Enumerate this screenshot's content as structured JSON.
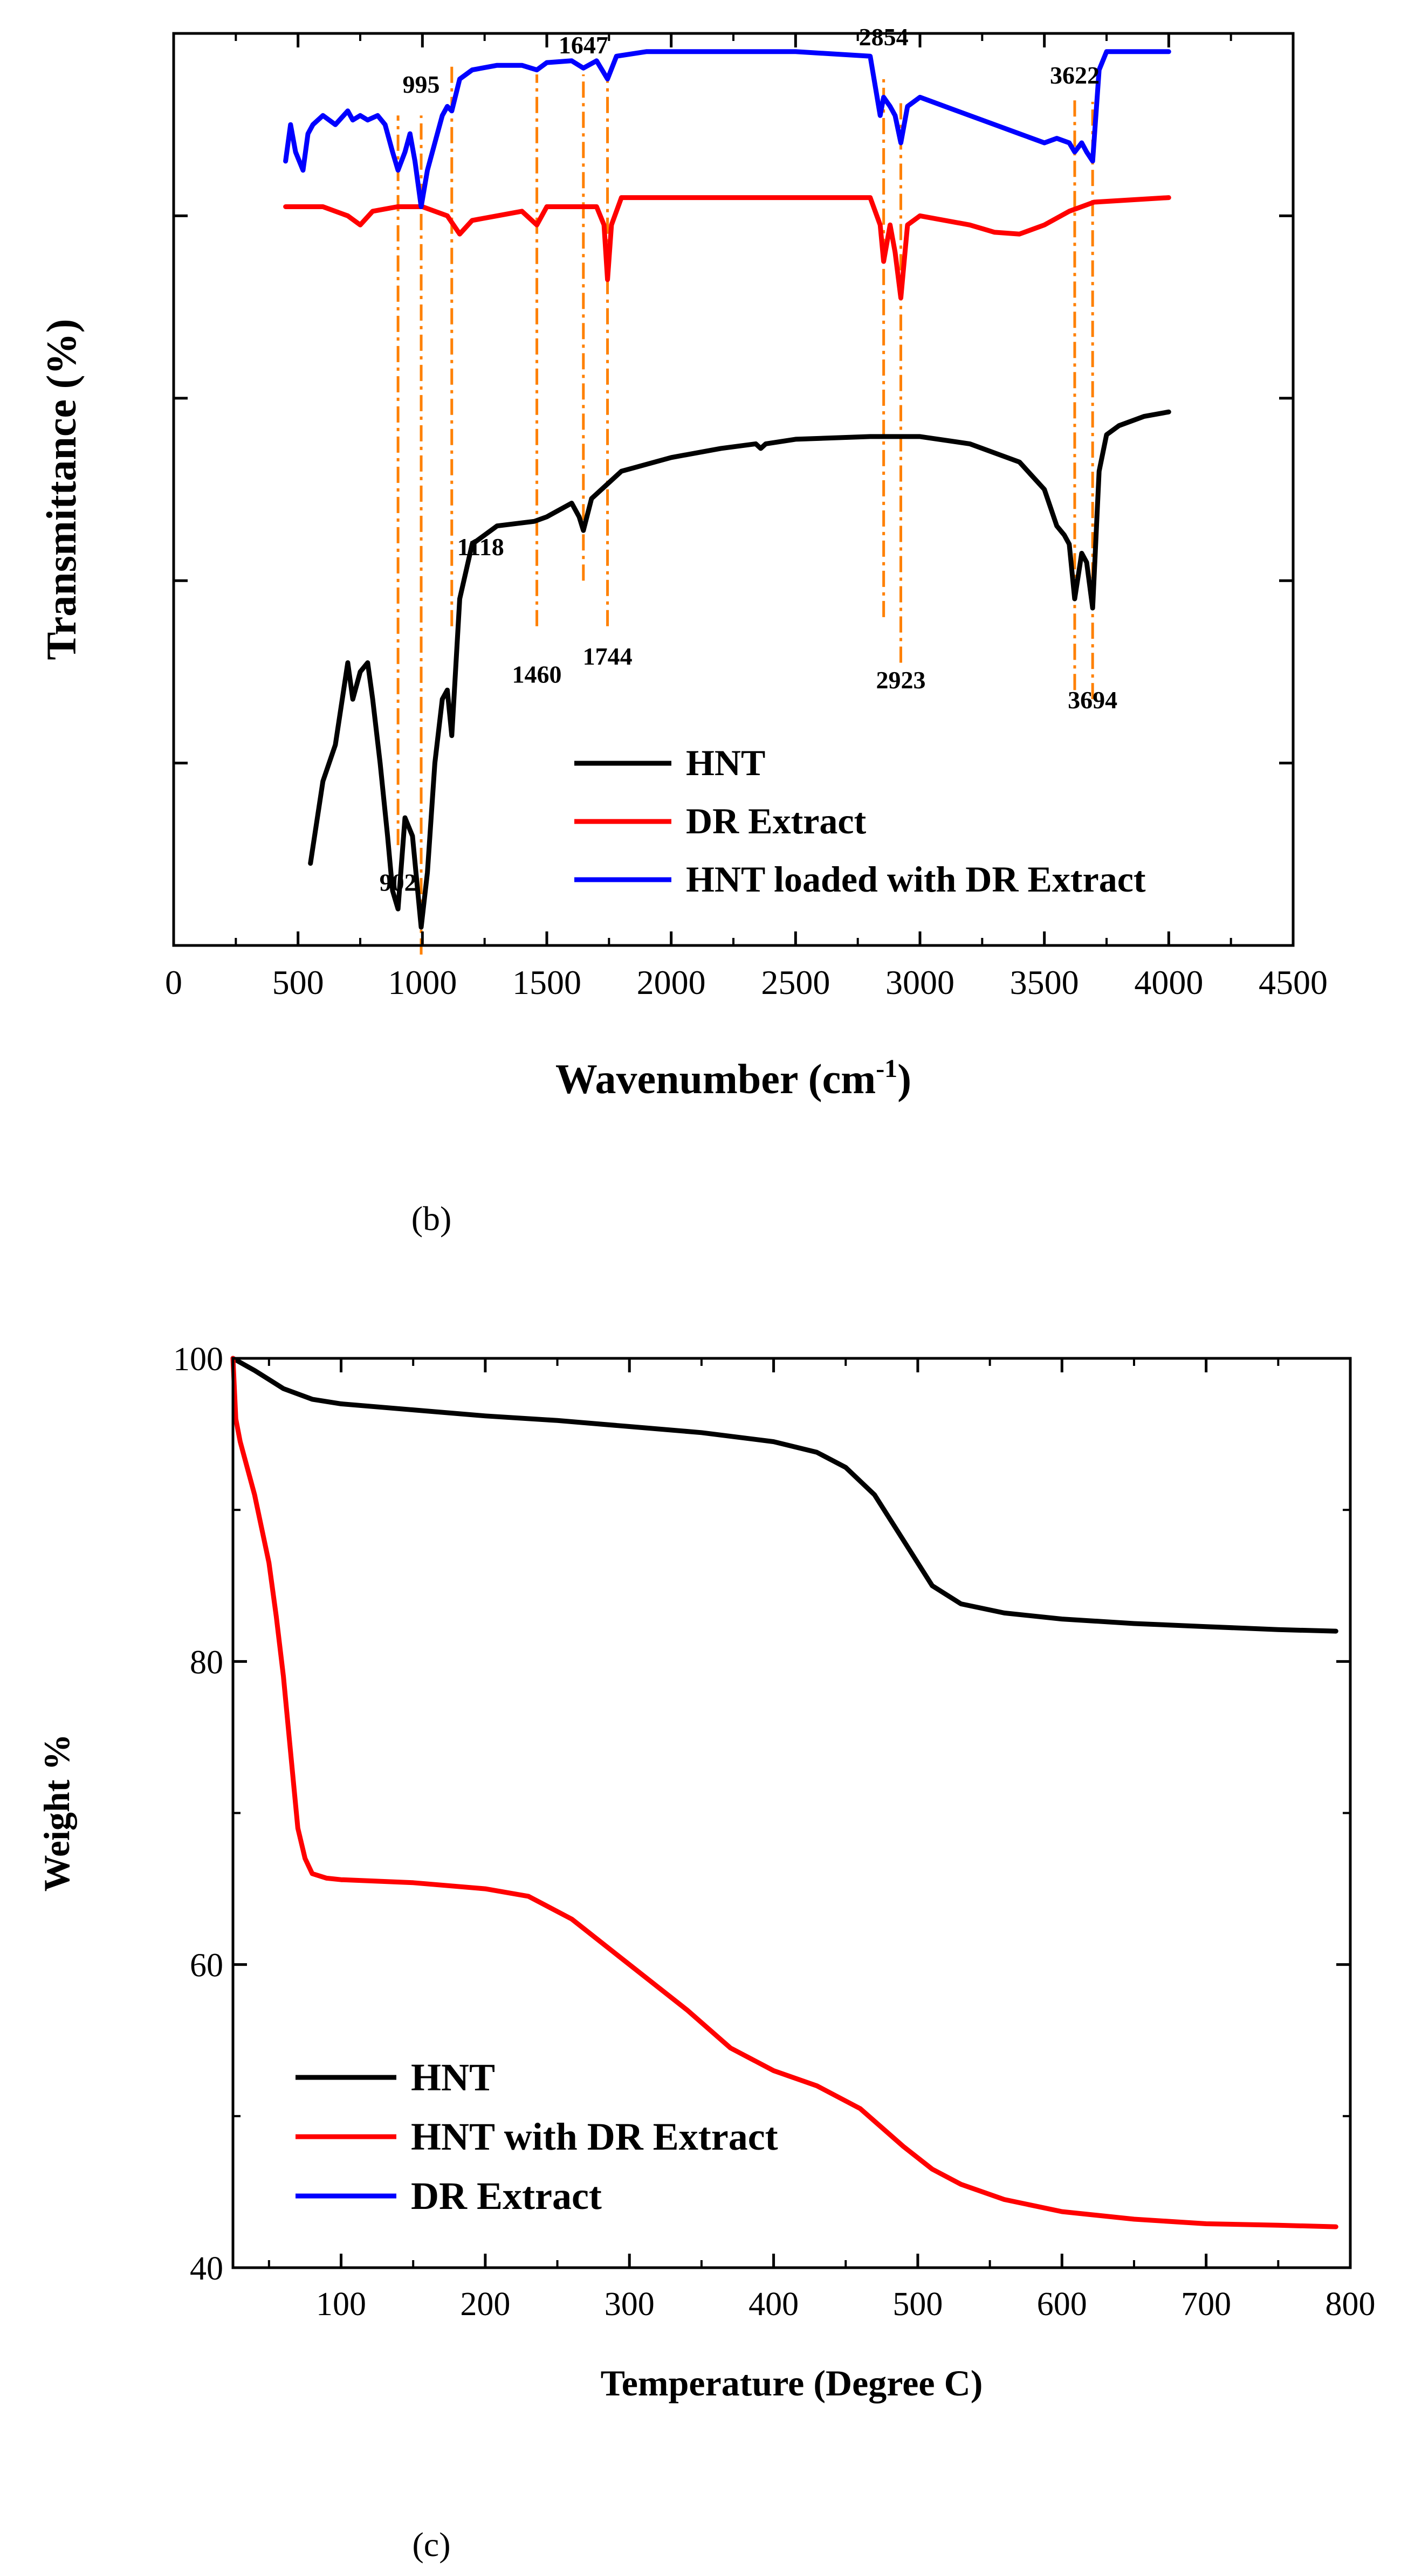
{
  "chart_data": [
    {
      "type": "line",
      "panel_label": "(b)",
      "title": "",
      "xlabel": "Wavenumber (cm",
      "xlabel_sup": "-1",
      "xlabel_close": ")",
      "ylabel": "Transmittance (%)",
      "xlim": [
        0,
        4500
      ],
      "ylim": [
        0,
        100
      ],
      "yticks_labeled": false,
      "xticks": [
        "0",
        "500",
        "1000",
        "1500",
        "2000",
        "2500",
        "3000",
        "3500",
        "4000",
        "4500"
      ],
      "legend_position": "bottom-right",
      "series": [
        {
          "name": "HNT",
          "color": "#000000",
          "x": [
            550,
            600,
            650,
            700,
            720,
            750,
            780,
            800,
            830,
            860,
            880,
            902,
            930,
            960,
            995,
            1020,
            1050,
            1080,
            1100,
            1118,
            1150,
            1200,
            1300,
            1450,
            1500,
            1600,
            1630,
            1647,
            1680,
            1800,
            2000,
            2200,
            2340,
            2360,
            2380,
            2500,
            2800,
            3000,
            3200,
            3400,
            3500,
            3550,
            3580,
            3600,
            3622,
            3650,
            3670,
            3694,
            3720,
            3750,
            3800,
            3900,
            4000
          ],
          "values": [
            9,
            18,
            22,
            31,
            27,
            30,
            31,
            27,
            20,
            12,
            6,
            4,
            14,
            12,
            2,
            8,
            20,
            27,
            28,
            23,
            38,
            44,
            46,
            46.5,
            47,
            48.5,
            47,
            45.5,
            49,
            52,
            53.5,
            54.5,
            55,
            54.5,
            55,
            55.5,
            55.8,
            55.8,
            55,
            53,
            50,
            46,
            45,
            44,
            38,
            43,
            42,
            37,
            52,
            56,
            57,
            58,
            58.5
          ]
        },
        {
          "name": "DR Extract",
          "color": "#ff0000",
          "x": [
            450,
            600,
            700,
            750,
            800,
            900,
            1000,
            1100,
            1150,
            1200,
            1300,
            1400,
            1460,
            1500,
            1600,
            1700,
            1730,
            1744,
            1760,
            1800,
            2000,
            2500,
            2800,
            2840,
            2854,
            2880,
            2900,
            2923,
            2950,
            3000,
            3200,
            3300,
            3400,
            3500,
            3600,
            3700,
            4000
          ],
          "values": [
            81,
            81,
            80,
            79,
            80.5,
            81,
            81,
            80,
            78,
            79.5,
            80,
            80.5,
            79,
            81,
            81,
            81,
            79,
            73,
            79,
            82,
            82,
            82,
            82,
            79,
            75,
            79,
            76,
            71,
            79,
            80,
            79,
            78.2,
            78,
            79,
            80.5,
            81.5,
            82
          ]
        },
        {
          "name": "HNT loaded with DR Extract",
          "color": "#0000ff",
          "x": [
            450,
            470,
            490,
            520,
            540,
            560,
            600,
            650,
            700,
            720,
            750,
            780,
            820,
            850,
            880,
            902,
            930,
            950,
            970,
            995,
            1020,
            1050,
            1080,
            1100,
            1118,
            1150,
            1200,
            1300,
            1400,
            1460,
            1500,
            1600,
            1647,
            1700,
            1744,
            1780,
            1900,
            2000,
            2500,
            2800,
            2840,
            2854,
            2880,
            2900,
            2923,
            2950,
            3000,
            3100,
            3200,
            3300,
            3400,
            3500,
            3550,
            3600,
            3622,
            3650,
            3670,
            3694,
            3720,
            3750,
            3800,
            4000
          ],
          "values": [
            86,
            90,
            87,
            85,
            89,
            90,
            91,
            90,
            91.5,
            90.5,
            91,
            90.5,
            91,
            90,
            87,
            85,
            87,
            89,
            86,
            81,
            85,
            88,
            91,
            92,
            91.5,
            95,
            96,
            96.5,
            96.5,
            96,
            96.8,
            97,
            96.2,
            97,
            95,
            97.5,
            98,
            98,
            98,
            97.5,
            91,
            93,
            92,
            91,
            88,
            92,
            93,
            92,
            91,
            90,
            89,
            88,
            88.5,
            88,
            87,
            88,
            87,
            86,
            96,
            98,
            98,
            98
          ]
        }
      ],
      "annotations": [
        "902",
        "995",
        "1118",
        "1460",
        "1647",
        "1744",
        "2854",
        "2923",
        "3622",
        "3694"
      ],
      "annotation_positions": [
        902,
        995,
        1118,
        1460,
        1647,
        1744,
        2854,
        2923,
        3622,
        3694
      ]
    },
    {
      "type": "line",
      "panel_label": "(c)",
      "title": "",
      "xlabel": "Temperature (Degree C)",
      "ylabel": "Weight %",
      "xlim": [
        25,
        800
      ],
      "ylim": [
        40,
        100
      ],
      "xticks": [
        "100",
        "200",
        "300",
        "400",
        "500",
        "600",
        "700",
        "800"
      ],
      "xtick_values": [
        100,
        200,
        300,
        400,
        500,
        600,
        700,
        800
      ],
      "yticks": [
        "40",
        "60",
        "80",
        "100"
      ],
      "ytick_values": [
        40,
        60,
        80,
        100
      ],
      "legend_position": "bottom-left",
      "series": [
        {
          "name": "HNT",
          "color": "#000000",
          "x": [
            25,
            40,
            60,
            80,
            100,
            150,
            200,
            250,
            300,
            350,
            400,
            430,
            450,
            470,
            490,
            510,
            530,
            560,
            600,
            650,
            700,
            750,
            790
          ],
          "values": [
            100,
            99.2,
            98,
            97.3,
            97,
            96.6,
            96.2,
            95.9,
            95.5,
            95.1,
            94.5,
            93.8,
            92.8,
            91,
            88,
            85,
            83.8,
            83.2,
            82.8,
            82.5,
            82.3,
            82.1,
            82
          ]
        },
        {
          "name": "HNT with DR Extract",
          "color": "#ff0000",
          "x": [
            25,
            27,
            30,
            40,
            50,
            55,
            60,
            65,
            70,
            75,
            80,
            90,
            100,
            150,
            200,
            230,
            260,
            300,
            340,
            370,
            400,
            430,
            460,
            490,
            510,
            530,
            560,
            600,
            650,
            700,
            750,
            790
          ],
          "values": [
            100,
            96,
            94.5,
            91,
            86.5,
            83,
            79,
            74,
            69,
            67,
            66,
            65.7,
            65.6,
            65.4,
            65,
            64.5,
            63,
            60,
            57,
            54.5,
            53,
            52,
            50.5,
            48,
            46.5,
            45.5,
            44.5,
            43.7,
            43.2,
            42.9,
            42.8,
            42.7
          ]
        },
        {
          "name": "DR Extract",
          "color": "#0000ff",
          "x": [],
          "values": []
        }
      ]
    }
  ]
}
